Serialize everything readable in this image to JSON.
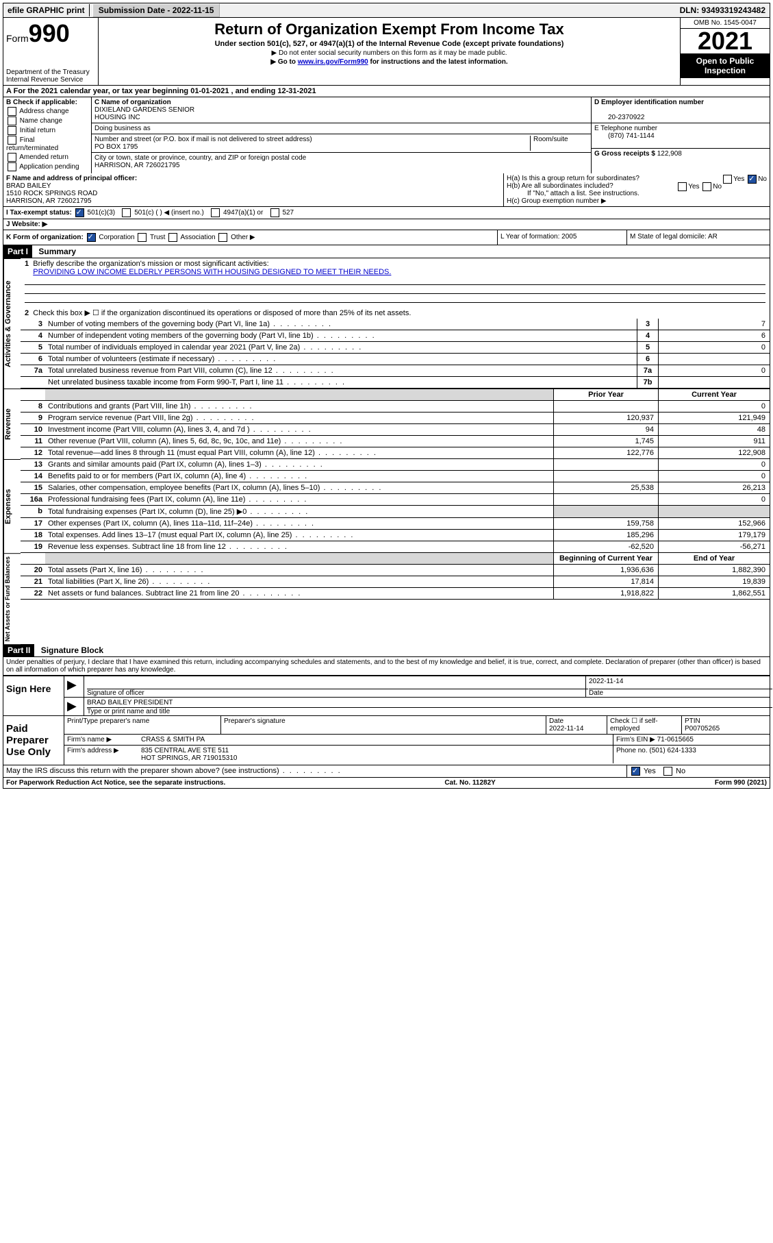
{
  "top_bar": {
    "efile": "efile GRAPHIC print",
    "submission_label": "Submission Date - 2022-11-15",
    "dln": "DLN: 93493319243482"
  },
  "header": {
    "form_prefix": "Form",
    "form_number": "990",
    "title": "Return of Organization Exempt From Income Tax",
    "subtitle": "Under section 501(c), 527, or 4947(a)(1) of the Internal Revenue Code (except private foundations)",
    "note1": "▶ Do not enter social security numbers on this form as it may be made public.",
    "note2_pre": "▶ Go to ",
    "note2_link": "www.irs.gov/Form990",
    "note2_post": " for instructions and the latest information.",
    "dept": "Department of the Treasury",
    "irs": "Internal Revenue Service",
    "omb": "OMB No. 1545-0047",
    "year": "2021",
    "inspect": "Open to Public Inspection"
  },
  "line_A": "For the 2021 calendar year, or tax year beginning 01-01-2021   , and ending 12-31-2021",
  "box_B": {
    "label": "B Check if applicable:",
    "addr": "Address change",
    "name": "Name change",
    "init": "Initial return",
    "final": "Final return/terminated",
    "amend": "Amended return",
    "app": "Application pending"
  },
  "box_C": {
    "label": "C Name of organization",
    "org1": "DIXIELAND GARDENS SENIOR",
    "org2": "HOUSING INC",
    "dba": "Doing business as",
    "street_label": "Number and street (or P.O. box if mail is not delivered to street address)",
    "room": "Room/suite",
    "street": "PO BOX 1795",
    "city_label": "City or town, state or province, country, and ZIP or foreign postal code",
    "city": "HARRISON, AR  726021795"
  },
  "box_D": {
    "label": "D Employer identification number",
    "ein": "20-2370922"
  },
  "box_E": {
    "label": "E Telephone number",
    "phone": "(870) 741-1144"
  },
  "box_G": {
    "label": "G Gross receipts $",
    "val": "122,908"
  },
  "box_F": {
    "label": "F  Name and address of principal officer:",
    "name": "BRAD BAILEY",
    "addr1": "1510 ROCK SPRINGS ROAD",
    "addr2": "HARRISON, AR  726021795"
  },
  "box_H": {
    "ha": "H(a)  Is this a group return for subordinates?",
    "hb": "H(b)  Are all subordinates included?",
    "hb_note": "If \"No,\" attach a list. See instructions.",
    "hc": "H(c)  Group exemption number ▶",
    "yes": "Yes",
    "no": "No"
  },
  "line_I": {
    "label": "I   Tax-exempt status:",
    "c3": "501(c)(3)",
    "c_other": "501(c) (   ) ◀ (insert no.)",
    "a1": "4947(a)(1) or",
    "527": "527"
  },
  "line_J": "J   Website: ▶",
  "line_K": {
    "label": "K Form of organization:",
    "corp": "Corporation",
    "trust": "Trust",
    "assoc": "Association",
    "other": "Other ▶",
    "L": "L Year of formation: 2005",
    "M": "M State of legal domicile: AR"
  },
  "part1": {
    "header": "Part I",
    "title": "Summary"
  },
  "summary": {
    "line1_label": "Briefly describe the organization's mission or most significant activities:",
    "line1_text": "PROVIDING LOW INCOME ELDERLY PERSONS WITH HOUSING DESIGNED TO MEET THEIR NEEDS.",
    "line2": "Check this box ▶ ☐  if the organization discontinued its operations or disposed of more than 25% of its net assets.",
    "rows_gov": [
      {
        "n": "3",
        "d": "Number of voting members of the governing body (Part VI, line 1a)",
        "box": "3",
        "v": "7"
      },
      {
        "n": "4",
        "d": "Number of independent voting members of the governing body (Part VI, line 1b)",
        "box": "4",
        "v": "6"
      },
      {
        "n": "5",
        "d": "Total number of individuals employed in calendar year 2021 (Part V, line 2a)",
        "box": "5",
        "v": "0"
      },
      {
        "n": "6",
        "d": "Total number of volunteers (estimate if necessary)",
        "box": "6",
        "v": ""
      },
      {
        "n": "7a",
        "d": "Total unrelated business revenue from Part VIII, column (C), line 12",
        "box": "7a",
        "v": "0"
      },
      {
        "n": "",
        "d": "Net unrelated business taxable income from Form 990-T, Part I, line 11",
        "box": "7b",
        "v": ""
      }
    ],
    "col_head_prior": "Prior Year",
    "col_head_curr": "Current Year",
    "rows_rev": [
      {
        "n": "8",
        "d": "Contributions and grants (Part VIII, line 1h)",
        "p": "",
        "c": "0"
      },
      {
        "n": "9",
        "d": "Program service revenue (Part VIII, line 2g)",
        "p": "120,937",
        "c": "121,949"
      },
      {
        "n": "10",
        "d": "Investment income (Part VIII, column (A), lines 3, 4, and 7d )",
        "p": "94",
        "c": "48"
      },
      {
        "n": "11",
        "d": "Other revenue (Part VIII, column (A), lines 5, 6d, 8c, 9c, 10c, and 11e)",
        "p": "1,745",
        "c": "911"
      },
      {
        "n": "12",
        "d": "Total revenue—add lines 8 through 11 (must equal Part VIII, column (A), line 12)",
        "p": "122,776",
        "c": "122,908"
      }
    ],
    "rows_exp": [
      {
        "n": "13",
        "d": "Grants and similar amounts paid (Part IX, column (A), lines 1–3)",
        "p": "",
        "c": "0"
      },
      {
        "n": "14",
        "d": "Benefits paid to or for members (Part IX, column (A), line 4)",
        "p": "",
        "c": "0"
      },
      {
        "n": "15",
        "d": "Salaries, other compensation, employee benefits (Part IX, column (A), lines 5–10)",
        "p": "25,538",
        "c": "26,213"
      },
      {
        "n": "16a",
        "d": "Professional fundraising fees (Part IX, column (A), line 11e)",
        "p": "",
        "c": "0"
      },
      {
        "n": "b",
        "d": "Total fundraising expenses (Part IX, column (D), line 25) ▶0",
        "p": "shaded",
        "c": "shaded"
      },
      {
        "n": "17",
        "d": "Other expenses (Part IX, column (A), lines 11a–11d, 11f–24e)",
        "p": "159,758",
        "c": "152,966"
      },
      {
        "n": "18",
        "d": "Total expenses. Add lines 13–17 (must equal Part IX, column (A), line 25)",
        "p": "185,296",
        "c": "179,179"
      },
      {
        "n": "19",
        "d": "Revenue less expenses. Subtract line 18 from line 12",
        "p": "-62,520",
        "c": "-56,271"
      }
    ],
    "col_head_begin": "Beginning of Current Year",
    "col_head_end": "End of Year",
    "rows_net": [
      {
        "n": "20",
        "d": "Total assets (Part X, line 16)",
        "p": "1,936,636",
        "c": "1,882,390"
      },
      {
        "n": "21",
        "d": "Total liabilities (Part X, line 26)",
        "p": "17,814",
        "c": "19,839"
      },
      {
        "n": "22",
        "d": "Net assets or fund balances. Subtract line 21 from line 20",
        "p": "1,918,822",
        "c": "1,862,551"
      }
    ]
  },
  "side_labels": {
    "gov": "Activities & Governance",
    "rev": "Revenue",
    "exp": "Expenses",
    "net": "Net Assets or Fund Balances"
  },
  "part2": {
    "header": "Part II",
    "title": "Signature Block",
    "declaration": "Under penalties of perjury, I declare that I have examined this return, including accompanying schedules and statements, and to the best of my knowledge and belief, it is true, correct, and complete. Declaration of preparer (other than officer) is based on all information of which preparer has any knowledge."
  },
  "sign": {
    "here": "Sign Here",
    "sig_officer": "Signature of officer",
    "date": "Date",
    "date_val": "2022-11-14",
    "name": "BRAD BAILEY PRESIDENT",
    "name_label": "Type or print name and title"
  },
  "preparer": {
    "label": "Paid Preparer Use Only",
    "print_name": "Print/Type preparer's name",
    "sig": "Preparer's signature",
    "date_label": "Date",
    "date": "2022-11-14",
    "check": "Check ☐ if self-employed",
    "ptin_label": "PTIN",
    "ptin": "P00705265",
    "firm_name_label": "Firm's name    ▶",
    "firm_name": "CRASS & SMITH PA",
    "firm_ein_label": "Firm's EIN ▶",
    "firm_ein": "71-0615665",
    "firm_addr_label": "Firm's address ▶",
    "firm_addr1": "835 CENTRAL AVE STE 511",
    "firm_addr2": "HOT SPRINGS, AR  719015310",
    "phone_label": "Phone no.",
    "phone": "(501) 624-1333"
  },
  "discuss": {
    "text": "May the IRS discuss this return with the preparer shown above? (see instructions)",
    "yes": "Yes",
    "no": "No"
  },
  "footer": {
    "left": "For Paperwork Reduction Act Notice, see the separate instructions.",
    "mid": "Cat. No. 11282Y",
    "right": "Form 990 (2021)"
  }
}
